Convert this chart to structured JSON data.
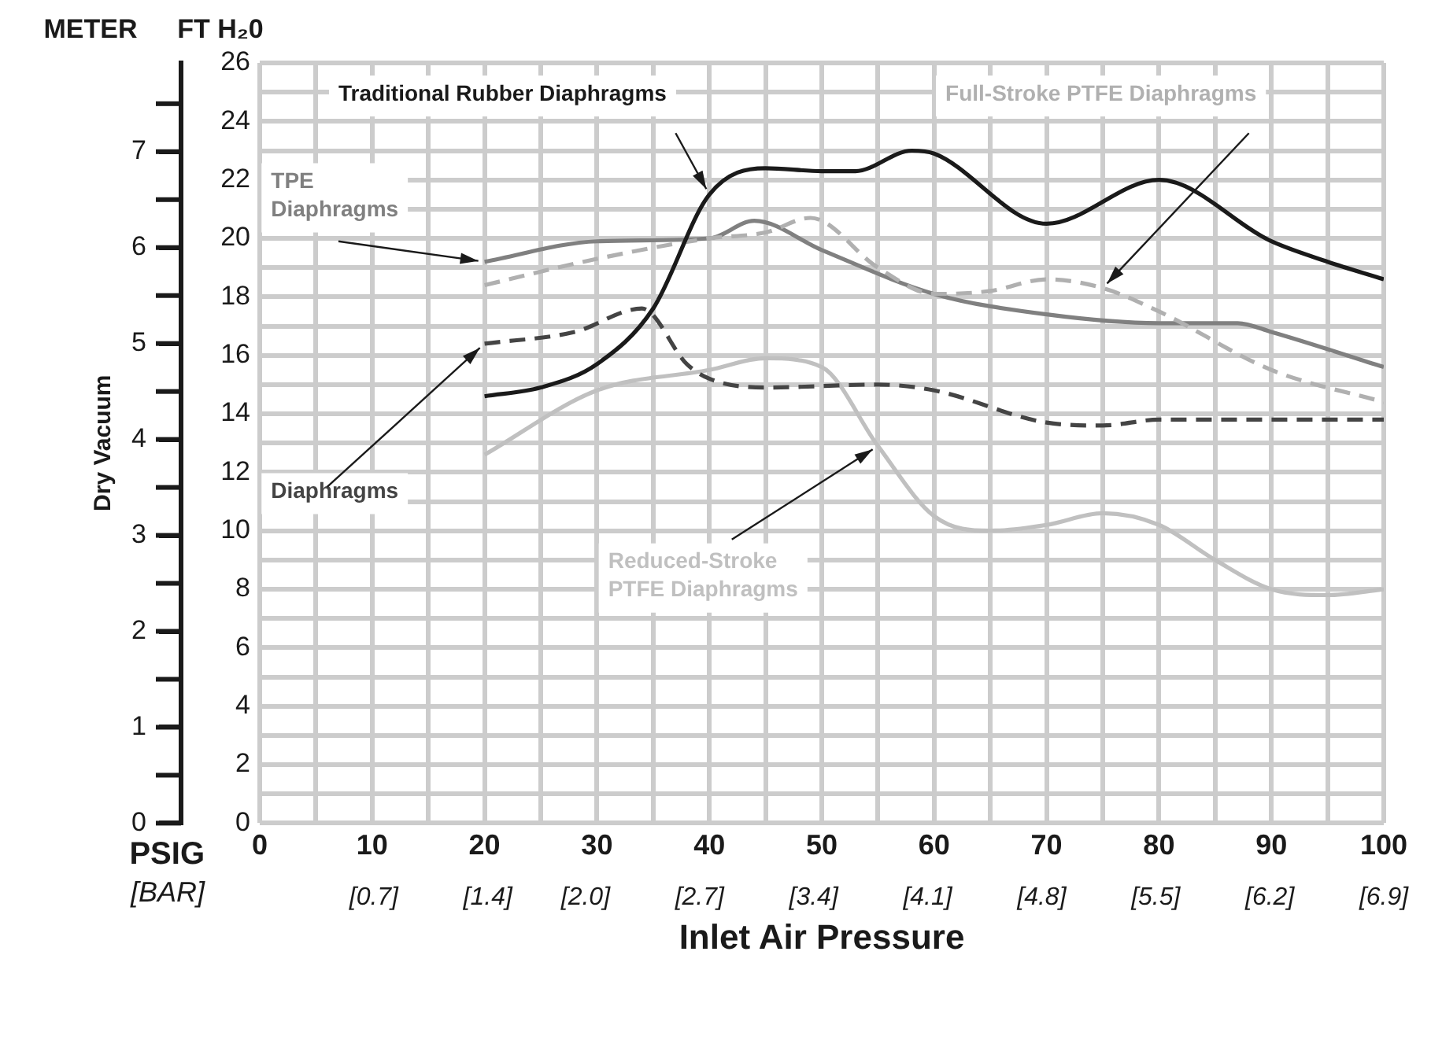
{
  "chart_data": {
    "type": "line",
    "xlabel": "Inlet Air Pressure",
    "ylabel": "FT H₂0",
    "y2label": "METER",
    "annotations": [
      "Dry Vacuum",
      "PSIG",
      "[BAR]"
    ],
    "xlim": [
      0,
      100
    ],
    "xticks": [
      0,
      {
        "value": 5,
        "label": null
      },
      10,
      {
        "value": 15,
        "label": null
      },
      20,
      {
        "value": 25,
        "label": null
      },
      30,
      {
        "value": 35,
        "label": null
      },
      40,
      {
        "value": 45,
        "label": null
      },
      50,
      {
        "value": 55,
        "label": null
      },
      60,
      {
        "value": 65,
        "label": null
      },
      70,
      {
        "value": 75,
        "label": null
      },
      80,
      {
        "value": 85,
        "label": null
      },
      90,
      {
        "value": 95,
        "label": null
      },
      100
    ],
    "x2lim": [
      0,
      6.9
    ],
    "x2ticks": [
      {
        "value": 0.7,
        "label": "[0.7]"
      },
      {
        "value": 1.4,
        "label": "[1.4]"
      },
      {
        "value": 2.0,
        "label": "[2.0]"
      },
      {
        "value": 2.7,
        "label": "[2.7]"
      },
      {
        "value": 3.4,
        "label": "[3.4]"
      },
      {
        "value": 4.1,
        "label": "[4.1]"
      },
      {
        "value": 4.8,
        "label": "[4.8]"
      },
      {
        "value": 5.5,
        "label": "[5.5]"
      },
      {
        "value": 6.2,
        "label": "[6.2]"
      },
      {
        "value": 6.9,
        "label": "[6.9]"
      }
    ],
    "ylim": [
      0,
      26
    ],
    "yticks": [
      0,
      {
        "value": 1,
        "label": null
      },
      2,
      {
        "value": 3,
        "label": null
      },
      4,
      {
        "value": 5,
        "label": null
      },
      6,
      {
        "value": 7,
        "label": null
      },
      8,
      {
        "value": 9,
        "label": null
      },
      10,
      {
        "value": 11,
        "label": null
      },
      12,
      {
        "value": 13,
        "label": null
      },
      14,
      {
        "value": 15,
        "label": null
      },
      16,
      {
        "value": 17,
        "label": null
      },
      18,
      {
        "value": 19,
        "label": null
      },
      20,
      {
        "value": 21,
        "label": null
      },
      22,
      {
        "value": 23,
        "label": null
      },
      24,
      {
        "value": 25,
        "label": null
      },
      26
    ],
    "y2lim": [
      0,
      7.925
    ],
    "y2ticks": [
      0,
      1,
      2,
      3,
      4,
      5,
      6,
      7
    ],
    "grid": true,
    "legend": false,
    "marker": "none",
    "series": [
      {
        "name": "Traditional Rubber Diaphragms",
        "color": "#1a1a1a",
        "line_style": "solid",
        "x": [
          20,
          25,
          30,
          35,
          40,
          45,
          50,
          53,
          58,
          60,
          70,
          80,
          90,
          95,
          100
        ],
        "values": [
          14.6,
          14.9,
          15.7,
          17.6,
          21.5,
          22.4,
          22.3,
          22.3,
          23.0,
          22.9,
          20.5,
          22.0,
          19.9,
          19.2,
          18.6
        ]
      },
      {
        "name": "Full-Stroke PTFE Diaphragms",
        "color": "#b0b0b0",
        "line_style": "dashed",
        "x": [
          20,
          30,
          40,
          45,
          49,
          55,
          60,
          65,
          70,
          75,
          80,
          90,
          100
        ],
        "values": [
          18.4,
          19.3,
          20.0,
          20.2,
          20.7,
          19.0,
          18.1,
          18.2,
          18.6,
          18.3,
          17.5,
          15.5,
          14.4
        ]
      },
      {
        "name": "TPE Diaphragms",
        "color": "#808080",
        "line_style": "solid",
        "x": [
          20,
          30,
          40,
          44,
          50,
          60,
          70,
          80,
          87,
          90,
          100
        ],
        "values": [
          19.2,
          19.9,
          20.0,
          20.6,
          19.6,
          18.1,
          17.4,
          17.1,
          17.1,
          16.8,
          15.6
        ]
      },
      {
        "name": "Diaphragms",
        "color": "#444444",
        "line_style": "dashed",
        "x": [
          20,
          28,
          34,
          38,
          40,
          45,
          55,
          60,
          70,
          75,
          80,
          100
        ],
        "values": [
          16.4,
          16.8,
          17.6,
          15.7,
          15.2,
          14.9,
          15.0,
          14.8,
          13.7,
          13.6,
          13.8,
          13.8
        ]
      },
      {
        "name": "Reduced-Stroke PTFE Diaphragms",
        "color": "#c0c0c0",
        "line_style": "solid",
        "x": [
          20,
          30,
          40,
          45,
          50,
          55,
          60,
          65,
          70,
          75,
          80,
          85,
          90,
          95,
          100
        ],
        "values": [
          12.6,
          14.8,
          15.5,
          15.9,
          15.6,
          12.9,
          10.5,
          10.0,
          10.2,
          10.6,
          10.2,
          9.0,
          8.0,
          7.8,
          8.0
        ]
      }
    ]
  }
}
